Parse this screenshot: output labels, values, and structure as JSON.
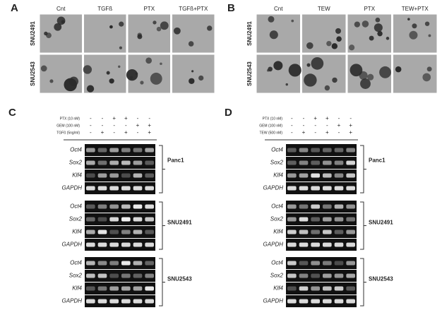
{
  "panels": [
    {
      "label": "A",
      "columns": [
        "Cnt",
        "TGFß",
        "PTX",
        "TGFß+PTX"
      ],
      "rows": [
        "SNU2491",
        "SNU2543"
      ]
    },
    {
      "label": "B",
      "columns": [
        "Cnt",
        "TEW",
        "PTX",
        "TEW+PTX"
      ],
      "rows": [
        "SNU2491",
        "SNU2543"
      ]
    },
    {
      "label": "C",
      "treatments": [
        {
          "name": "PTX (10 nM)",
          "signs": [
            "-",
            "-",
            "+",
            "+",
            "-",
            "-"
          ]
        },
        {
          "name": "GEM (100 nM)",
          "signs": [
            "-",
            "-",
            "-",
            "-",
            "+",
            "+"
          ]
        },
        {
          "name": "TGFß (5ng/ml)",
          "signs": [
            "-",
            "+",
            "-",
            "+",
            "-",
            "+"
          ]
        }
      ],
      "blocks": [
        {
          "cell_line": "Panc1",
          "genes": [
            "Oct4",
            "Sox2",
            "Klf4",
            "GAPDH"
          ]
        },
        {
          "cell_line": "SNU2491",
          "genes": [
            "Oct4",
            "Sox2",
            "Klf4",
            "GAPDH"
          ]
        },
        {
          "cell_line": "SNU2543",
          "genes": [
            "Oct4",
            "Sox2",
            "Klf4",
            "GAPDH"
          ]
        }
      ]
    },
    {
      "label": "D",
      "treatments": [
        {
          "name": "PTX (10 nM)",
          "signs": [
            "-",
            "-",
            "+",
            "+",
            "-",
            "-"
          ]
        },
        {
          "name": "GEM (100 nM)",
          "signs": [
            "-",
            "-",
            "-",
            "-",
            "+",
            "+"
          ]
        },
        {
          "name": "TEW (500 nM)",
          "signs": [
            "-",
            "+",
            "-",
            "+",
            "-",
            "+"
          ]
        }
      ],
      "blocks": [
        {
          "cell_line": "Panc1",
          "genes": [
            "Oct4",
            "Sox2",
            "Klf4",
            "GAPDH"
          ]
        },
        {
          "cell_line": "SNU2491",
          "genes": [
            "Oct4",
            "Sox2",
            "Klf4",
            "GAPDH"
          ]
        },
        {
          "cell_line": "SNU2543",
          "genes": [
            "Oct4",
            "Sox2",
            "Klf4",
            "GAPDH"
          ]
        }
      ]
    }
  ]
}
